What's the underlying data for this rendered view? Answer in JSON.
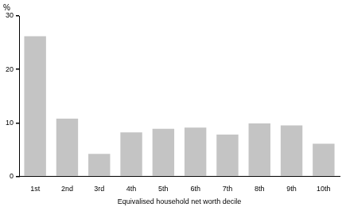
{
  "chart_data": {
    "type": "bar",
    "ylabel": "%",
    "xlabel": "Equivalised household net worth decile",
    "categories": [
      "1st",
      "2nd",
      "3rd",
      "4th",
      "5th",
      "6th",
      "7th",
      "8th",
      "9th",
      "10th"
    ],
    "values": [
      26.2,
      10.8,
      4.2,
      8.2,
      8.9,
      9.1,
      7.8,
      9.9,
      9.5,
      6.1
    ],
    "color": "#c4c4c4",
    "ylim": [
      0,
      30
    ],
    "yticks": [
      0,
      10,
      20,
      30
    ],
    "grid": true
  }
}
